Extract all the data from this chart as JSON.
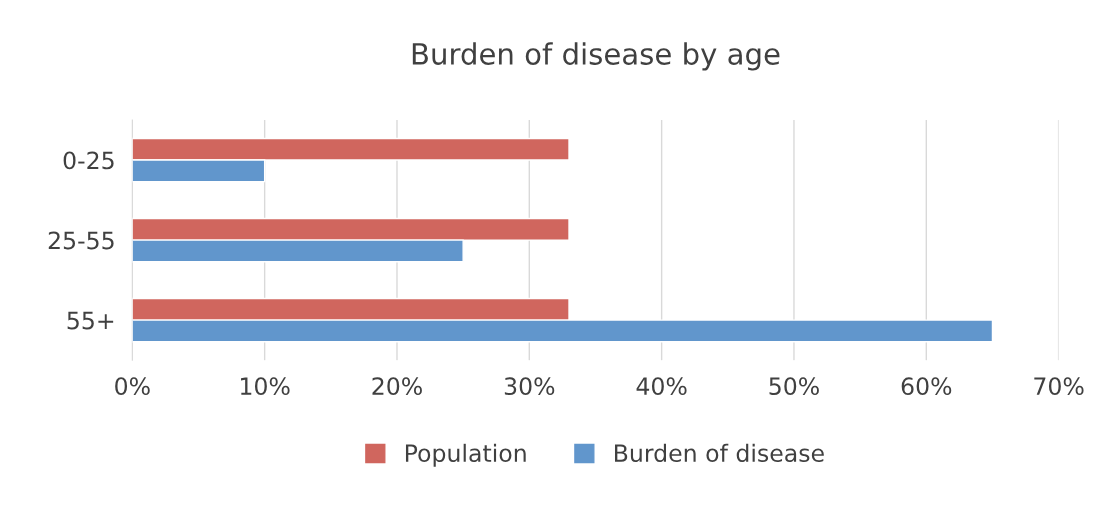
{
  "chart_data": {
    "type": "bar",
    "orientation": "horizontal",
    "title": "Burden of disease by age",
    "categories": [
      "0-25",
      "25-55",
      "55+"
    ],
    "series": [
      {
        "name": "Population",
        "color": "#d0665e",
        "values": [
          33,
          33,
          33
        ]
      },
      {
        "name": "Burden of disease",
        "color": "#6196cc",
        "values": [
          10,
          25,
          65
        ]
      }
    ],
    "xlim": [
      0,
      70
    ],
    "xticks": [
      {
        "value": 0,
        "label": "0%"
      },
      {
        "value": 10,
        "label": "10%"
      },
      {
        "value": 20,
        "label": "20%"
      },
      {
        "value": 30,
        "label": "30%"
      },
      {
        "value": 40,
        "label": "40%"
      },
      {
        "value": 50,
        "label": "50%"
      },
      {
        "value": 60,
        "label": "60%"
      },
      {
        "value": 70,
        "label": "70%"
      }
    ],
    "grid": "x",
    "legend": "bottom"
  }
}
